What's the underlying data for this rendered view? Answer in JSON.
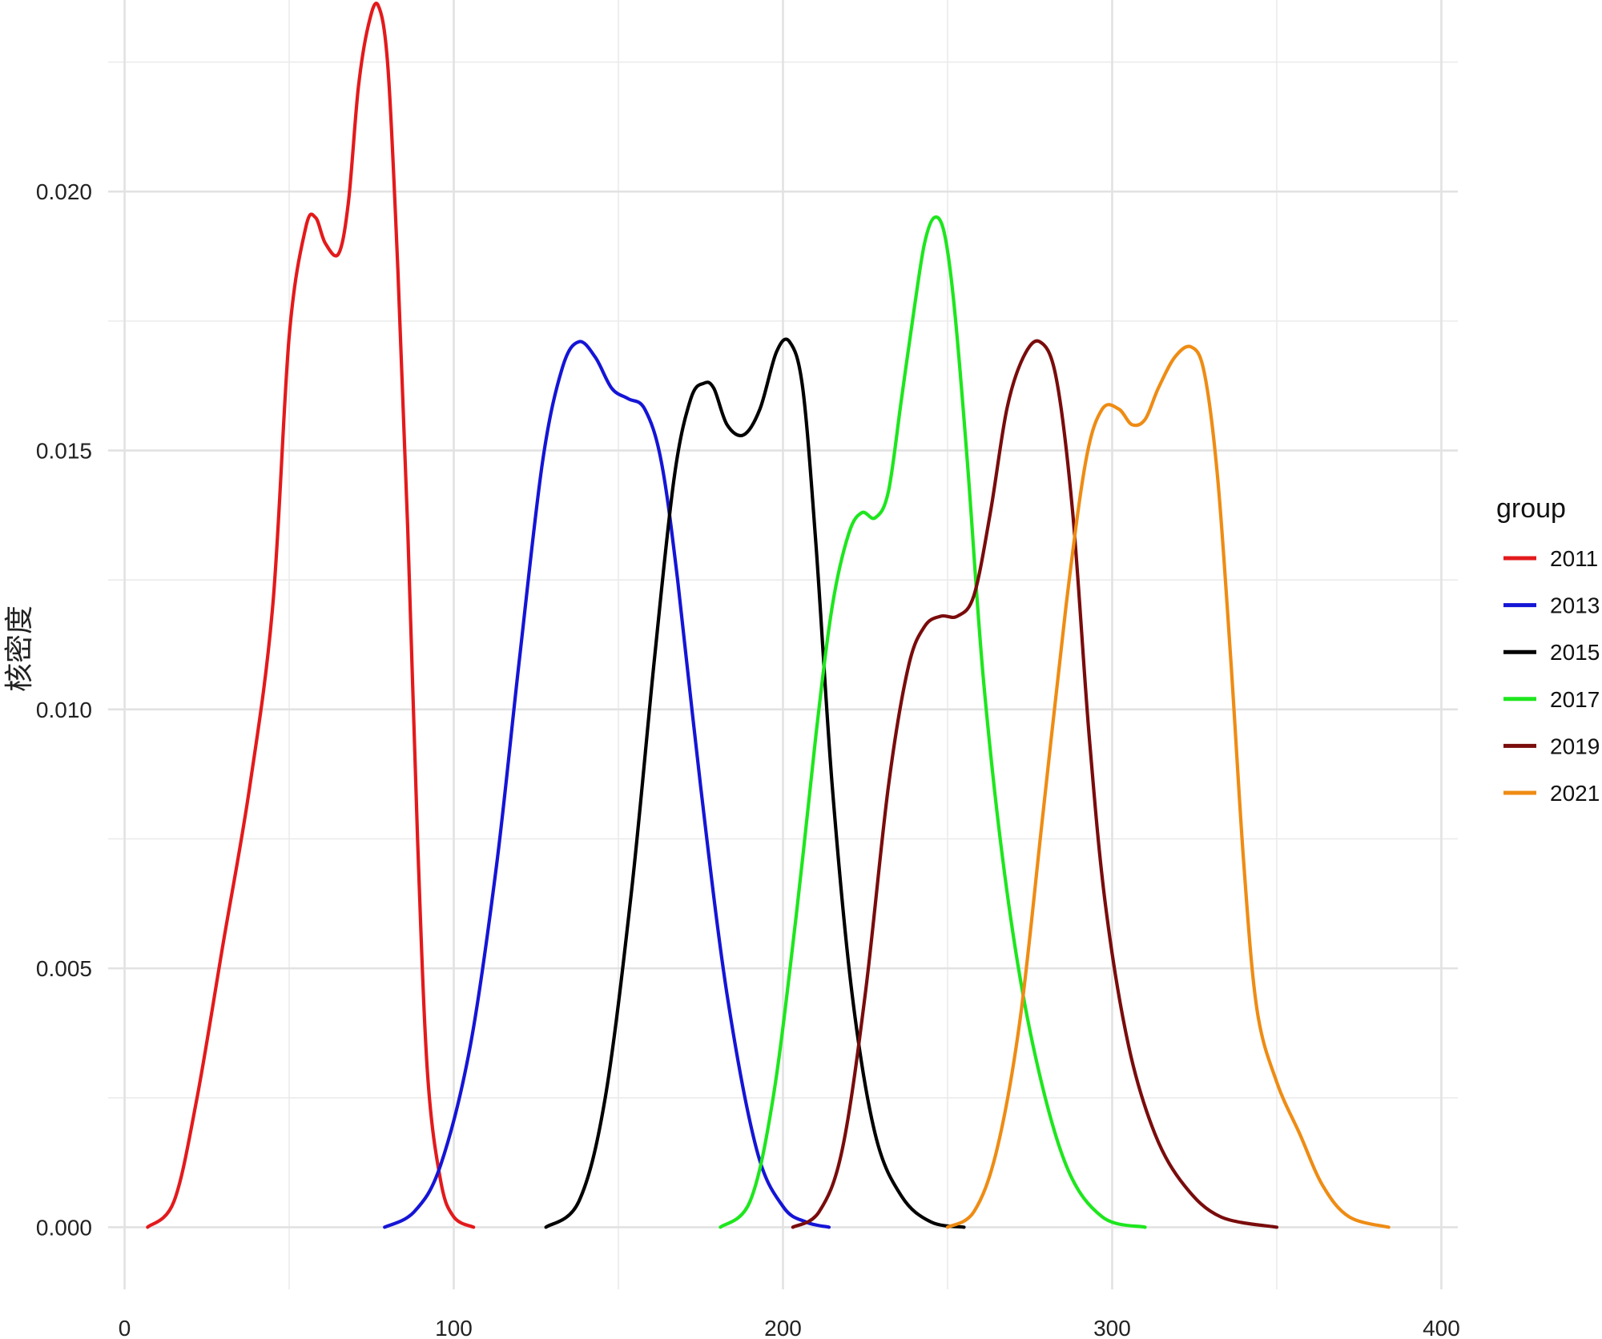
{
  "chart_data": {
    "type": "line",
    "title": "",
    "xlabel": "",
    "ylabel": "核密度",
    "xlim": [
      -5,
      405
    ],
    "ylim": [
      -0.0012,
      0.0237
    ],
    "x_ticks": [
      0,
      100,
      200,
      300,
      400
    ],
    "x_tick_labels": [
      "0",
      "100",
      "200",
      "300",
      "400"
    ],
    "y_ticks": [
      0,
      0.005,
      0.01,
      0.015,
      0.02
    ],
    "y_tick_labels": [
      "0.000",
      "0.005",
      "0.010",
      "0.015",
      "0.020"
    ],
    "grid": true,
    "legend": {
      "title": "group",
      "position": "right"
    },
    "series": [
      {
        "name": "2011",
        "color": "#e31a1c",
        "x": [
          7,
          15,
          22,
          30,
          38,
          45,
          50,
          55,
          58,
          61,
          65,
          68,
          71,
          74,
          77,
          80,
          83,
          86,
          89,
          92,
          96,
          100,
          106
        ],
        "y": [
          0.0,
          0.0005,
          0.0025,
          0.0055,
          0.0085,
          0.012,
          0.0172,
          0.0193,
          0.0195,
          0.019,
          0.0188,
          0.0198,
          0.022,
          0.0232,
          0.0236,
          0.0224,
          0.0185,
          0.0135,
          0.0075,
          0.003,
          0.0009,
          0.0002,
          0.0
        ]
      },
      {
        "name": "2013",
        "color": "#1515d6",
        "x": [
          79,
          88,
          96,
          105,
          113,
          120,
          127,
          133,
          138,
          143,
          148,
          153,
          158,
          163,
          168,
          175,
          183,
          192,
          200,
          207,
          214
        ],
        "y": [
          0.0,
          0.0003,
          0.0012,
          0.0035,
          0.007,
          0.011,
          0.0148,
          0.0166,
          0.0171,
          0.0168,
          0.0162,
          0.016,
          0.0158,
          0.0148,
          0.0125,
          0.0085,
          0.0045,
          0.0015,
          0.0004,
          0.0001,
          0.0
        ]
      },
      {
        "name": "2015",
        "color": "#000000",
        "x": [
          128,
          138,
          146,
          154,
          161,
          167,
          172,
          176,
          179,
          183,
          188,
          193,
          198,
          202,
          206,
          210,
          215,
          221,
          228,
          236,
          245,
          255
        ],
        "y": [
          0.0,
          0.0005,
          0.0025,
          0.0065,
          0.011,
          0.0145,
          0.016,
          0.0163,
          0.0162,
          0.0155,
          0.0153,
          0.0158,
          0.0169,
          0.0171,
          0.0162,
          0.0132,
          0.0085,
          0.0045,
          0.0018,
          0.0006,
          0.0001,
          0.0
        ]
      },
      {
        "name": "2017",
        "color": "#1ee61e",
        "x": [
          181,
          190,
          197,
          204,
          210,
          215,
          220,
          224,
          228,
          232,
          236,
          240,
          243,
          246,
          249,
          252,
          256,
          261,
          268,
          276,
          286,
          297,
          310
        ],
        "y": [
          0.0,
          0.0005,
          0.0025,
          0.006,
          0.0095,
          0.012,
          0.0134,
          0.0138,
          0.0137,
          0.0142,
          0.016,
          0.0178,
          0.019,
          0.0195,
          0.0192,
          0.0178,
          0.0148,
          0.0105,
          0.0065,
          0.0035,
          0.0012,
          0.0002,
          0.0
        ]
      },
      {
        "name": "2019",
        "color": "#7a0c0c",
        "x": [
          203,
          211,
          218,
          225,
          232,
          238,
          243,
          248,
          253,
          258,
          263,
          268,
          273,
          278,
          283,
          288,
          293,
          298,
          305,
          313,
          322,
          333,
          350
        ],
        "y": [
          0.0,
          0.0003,
          0.0015,
          0.0045,
          0.0085,
          0.0108,
          0.0116,
          0.0118,
          0.0118,
          0.0122,
          0.0138,
          0.0158,
          0.0168,
          0.0171,
          0.0164,
          0.0138,
          0.0095,
          0.0062,
          0.0035,
          0.0018,
          0.0008,
          0.0002,
          0.0
        ]
      },
      {
        "name": "2021",
        "color": "#ee8c14",
        "x": [
          250,
          258,
          265,
          272,
          279,
          286,
          292,
          297,
          302,
          306,
          310,
          314,
          319,
          324,
          328,
          332,
          336,
          340,
          344,
          350,
          357,
          364,
          372,
          384
        ],
        "y": [
          0.0,
          0.0003,
          0.0015,
          0.004,
          0.008,
          0.012,
          0.0148,
          0.0158,
          0.0158,
          0.0155,
          0.0156,
          0.0162,
          0.0168,
          0.017,
          0.0165,
          0.0145,
          0.011,
          0.007,
          0.0042,
          0.0028,
          0.0018,
          0.0008,
          0.0002,
          0.0
        ]
      }
    ]
  }
}
